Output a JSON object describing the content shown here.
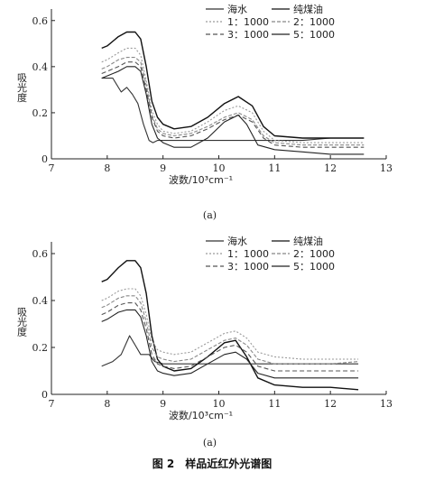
{
  "caption": "图 2　样品近红外光谱图",
  "chart_data": [
    {
      "type": "line",
      "label": "(a)",
      "xlabel": "波数/10³cm⁻¹",
      "ylabel": "吸光度",
      "xlim": [
        7,
        13
      ],
      "ylim": [
        0,
        0.65
      ],
      "x_ticks": [
        "7",
        "8",
        "9",
        "10",
        "11",
        "12",
        "13"
      ],
      "y_ticks": [
        "0",
        "0.2",
        "0.4",
        "0.6"
      ],
      "grid": false,
      "legend_position": "top-right",
      "series": [
        {
          "name": "海水",
          "color": "#333333",
          "dash": "",
          "x": [
            7.9,
            8.1,
            8.25,
            8.35,
            8.45,
            8.55,
            8.65,
            8.75,
            8.82,
            8.9,
            9.0,
            9.3,
            9.6,
            10.0,
            10.3,
            10.5,
            10.7,
            11.0,
            11.5,
            12.0,
            12.6
          ],
          "y": [
            0.35,
            0.35,
            0.29,
            0.31,
            0.28,
            0.24,
            0.15,
            0.08,
            0.07,
            0.08,
            0.08,
            0.08,
            0.08,
            0.08,
            0.08,
            0.08,
            0.08,
            0.08,
            0.08,
            0.09,
            0.09
          ]
        },
        {
          "name": "纯煤油",
          "color": "#111111",
          "dash": "",
          "x": [
            7.9,
            8.0,
            8.2,
            8.35,
            8.5,
            8.6,
            8.7,
            8.8,
            8.9,
            9.0,
            9.2,
            9.5,
            9.8,
            10.1,
            10.35,
            10.6,
            10.8,
            11.0,
            11.5,
            12.0,
            12.6
          ],
          "y": [
            0.48,
            0.49,
            0.53,
            0.55,
            0.55,
            0.52,
            0.4,
            0.25,
            0.18,
            0.15,
            0.13,
            0.14,
            0.18,
            0.24,
            0.27,
            0.23,
            0.14,
            0.1,
            0.09,
            0.09,
            0.09
          ]
        },
        {
          "name": "1：1000",
          "color": "#9a9a9a",
          "dash": "2,2",
          "x": [
            7.9,
            8.0,
            8.2,
            8.35,
            8.5,
            8.6,
            8.7,
            8.8,
            8.9,
            9.0,
            9.2,
            9.5,
            9.8,
            10.1,
            10.35,
            10.6,
            10.8,
            11.0,
            11.5,
            12.0,
            12.6
          ],
          "y": [
            0.42,
            0.43,
            0.46,
            0.48,
            0.48,
            0.45,
            0.34,
            0.21,
            0.15,
            0.12,
            0.11,
            0.12,
            0.16,
            0.21,
            0.23,
            0.2,
            0.12,
            0.08,
            0.07,
            0.07,
            0.07
          ]
        },
        {
          "name": "2：1000",
          "color": "#888888",
          "dash": "4,2",
          "x": [
            7.9,
            8.0,
            8.2,
            8.35,
            8.5,
            8.6,
            8.7,
            8.8,
            8.9,
            9.0,
            9.2,
            9.5,
            9.8,
            10.1,
            10.35,
            10.6,
            10.8,
            11.0,
            11.5,
            12.0,
            12.6
          ],
          "y": [
            0.39,
            0.4,
            0.43,
            0.44,
            0.44,
            0.42,
            0.32,
            0.19,
            0.13,
            0.11,
            0.1,
            0.11,
            0.14,
            0.18,
            0.2,
            0.17,
            0.1,
            0.07,
            0.06,
            0.06,
            0.06
          ]
        },
        {
          "name": "3：1000",
          "color": "#555555",
          "dash": "5,3",
          "x": [
            7.9,
            8.0,
            8.2,
            8.35,
            8.5,
            8.6,
            8.7,
            8.8,
            8.9,
            9.0,
            9.2,
            9.5,
            9.8,
            10.1,
            10.35,
            10.6,
            10.8,
            11.0,
            11.5,
            12.0,
            12.6
          ],
          "y": [
            0.37,
            0.38,
            0.4,
            0.42,
            0.42,
            0.4,
            0.3,
            0.18,
            0.12,
            0.1,
            0.09,
            0.1,
            0.13,
            0.17,
            0.19,
            0.16,
            0.09,
            0.06,
            0.05,
            0.05,
            0.05
          ]
        },
        {
          "name": "5：1000",
          "color": "#222222",
          "dash": "",
          "x": [
            7.9,
            8.0,
            8.2,
            8.35,
            8.5,
            8.6,
            8.7,
            8.8,
            8.9,
            9.0,
            9.2,
            9.5,
            9.8,
            10.1,
            10.35,
            10.5,
            10.7,
            11.0,
            11.5,
            12.0,
            12.6
          ],
          "y": [
            0.35,
            0.36,
            0.38,
            0.4,
            0.4,
            0.38,
            0.28,
            0.15,
            0.09,
            0.07,
            0.05,
            0.05,
            0.09,
            0.16,
            0.19,
            0.15,
            0.06,
            0.04,
            0.03,
            0.02,
            0.02
          ]
        }
      ]
    },
    {
      "type": "line",
      "label": "(a)",
      "xlabel": "波数/10³cm⁻¹",
      "ylabel": "吸光度",
      "xlim": [
        7,
        13
      ],
      "ylim": [
        0,
        0.65
      ],
      "x_ticks": [
        "7",
        "8",
        "9",
        "10",
        "11",
        "12",
        "13"
      ],
      "y_ticks": [
        "0",
        "0.2",
        "0.4",
        "0.6"
      ],
      "grid": false,
      "legend_position": "top-right",
      "series": [
        {
          "name": "海水",
          "color": "#333333",
          "dash": "",
          "x": [
            7.9,
            8.1,
            8.25,
            8.4,
            8.5,
            8.6,
            8.75,
            8.85,
            9.0,
            9.5,
            10.0,
            10.5,
            11.0,
            11.5,
            12.0,
            12.5
          ],
          "y": [
            0.12,
            0.14,
            0.17,
            0.25,
            0.21,
            0.17,
            0.17,
            0.14,
            0.13,
            0.13,
            0.13,
            0.13,
            0.13,
            0.13,
            0.13,
            0.13
          ]
        },
        {
          "name": "纯煤油",
          "color": "#111111",
          "dash": "",
          "x": [
            7.9,
            8.0,
            8.2,
            8.35,
            8.5,
            8.6,
            8.7,
            8.8,
            8.9,
            9.0,
            9.2,
            9.5,
            9.8,
            10.1,
            10.3,
            10.5,
            10.7,
            11.0,
            11.5,
            12.0,
            12.5
          ],
          "y": [
            0.48,
            0.49,
            0.54,
            0.57,
            0.57,
            0.54,
            0.43,
            0.25,
            0.15,
            0.12,
            0.1,
            0.11,
            0.16,
            0.22,
            0.23,
            0.16,
            0.07,
            0.04,
            0.03,
            0.03,
            0.02
          ]
        },
        {
          "name": "1：1000",
          "color": "#9a9a9a",
          "dash": "2,2",
          "x": [
            7.9,
            8.0,
            8.2,
            8.35,
            8.5,
            8.6,
            8.7,
            8.8,
            8.9,
            9.0,
            9.2,
            9.5,
            9.8,
            10.1,
            10.3,
            10.5,
            10.7,
            11.0,
            11.5,
            12.0,
            12.5
          ],
          "y": [
            0.4,
            0.41,
            0.44,
            0.45,
            0.45,
            0.42,
            0.34,
            0.23,
            0.19,
            0.18,
            0.17,
            0.18,
            0.22,
            0.26,
            0.27,
            0.24,
            0.18,
            0.16,
            0.15,
            0.15,
            0.15
          ]
        },
        {
          "name": "2：1000",
          "color": "#888888",
          "dash": "4,2",
          "x": [
            7.9,
            8.0,
            8.2,
            8.35,
            8.5,
            8.6,
            8.7,
            8.8,
            8.9,
            9.0,
            9.2,
            9.5,
            9.8,
            10.1,
            10.3,
            10.5,
            10.7,
            11.0,
            11.5,
            12.0,
            12.5
          ],
          "y": [
            0.37,
            0.38,
            0.41,
            0.42,
            0.42,
            0.39,
            0.31,
            0.2,
            0.16,
            0.15,
            0.14,
            0.15,
            0.19,
            0.23,
            0.24,
            0.21,
            0.15,
            0.13,
            0.13,
            0.13,
            0.14
          ]
        },
        {
          "name": "3：1000",
          "color": "#555555",
          "dash": "5,3",
          "x": [
            7.9,
            8.0,
            8.2,
            8.35,
            8.5,
            8.6,
            8.7,
            8.8,
            8.9,
            9.0,
            9.2,
            9.5,
            9.8,
            10.1,
            10.3,
            10.5,
            10.7,
            11.0,
            11.5,
            12.0,
            12.5
          ],
          "y": [
            0.34,
            0.35,
            0.38,
            0.39,
            0.39,
            0.36,
            0.28,
            0.17,
            0.13,
            0.12,
            0.11,
            0.12,
            0.16,
            0.2,
            0.21,
            0.18,
            0.12,
            0.1,
            0.1,
            0.1,
            0.1
          ]
        },
        {
          "name": "5：1000",
          "color": "#222222",
          "dash": "",
          "x": [
            7.9,
            8.0,
            8.2,
            8.35,
            8.5,
            8.6,
            8.7,
            8.8,
            8.9,
            9.0,
            9.2,
            9.5,
            9.8,
            10.1,
            10.3,
            10.5,
            10.7,
            11.0,
            11.5,
            12.0,
            12.5
          ],
          "y": [
            0.31,
            0.32,
            0.35,
            0.36,
            0.36,
            0.33,
            0.25,
            0.14,
            0.1,
            0.09,
            0.08,
            0.09,
            0.13,
            0.17,
            0.18,
            0.15,
            0.09,
            0.07,
            0.07,
            0.07,
            0.07
          ]
        }
      ]
    }
  ]
}
